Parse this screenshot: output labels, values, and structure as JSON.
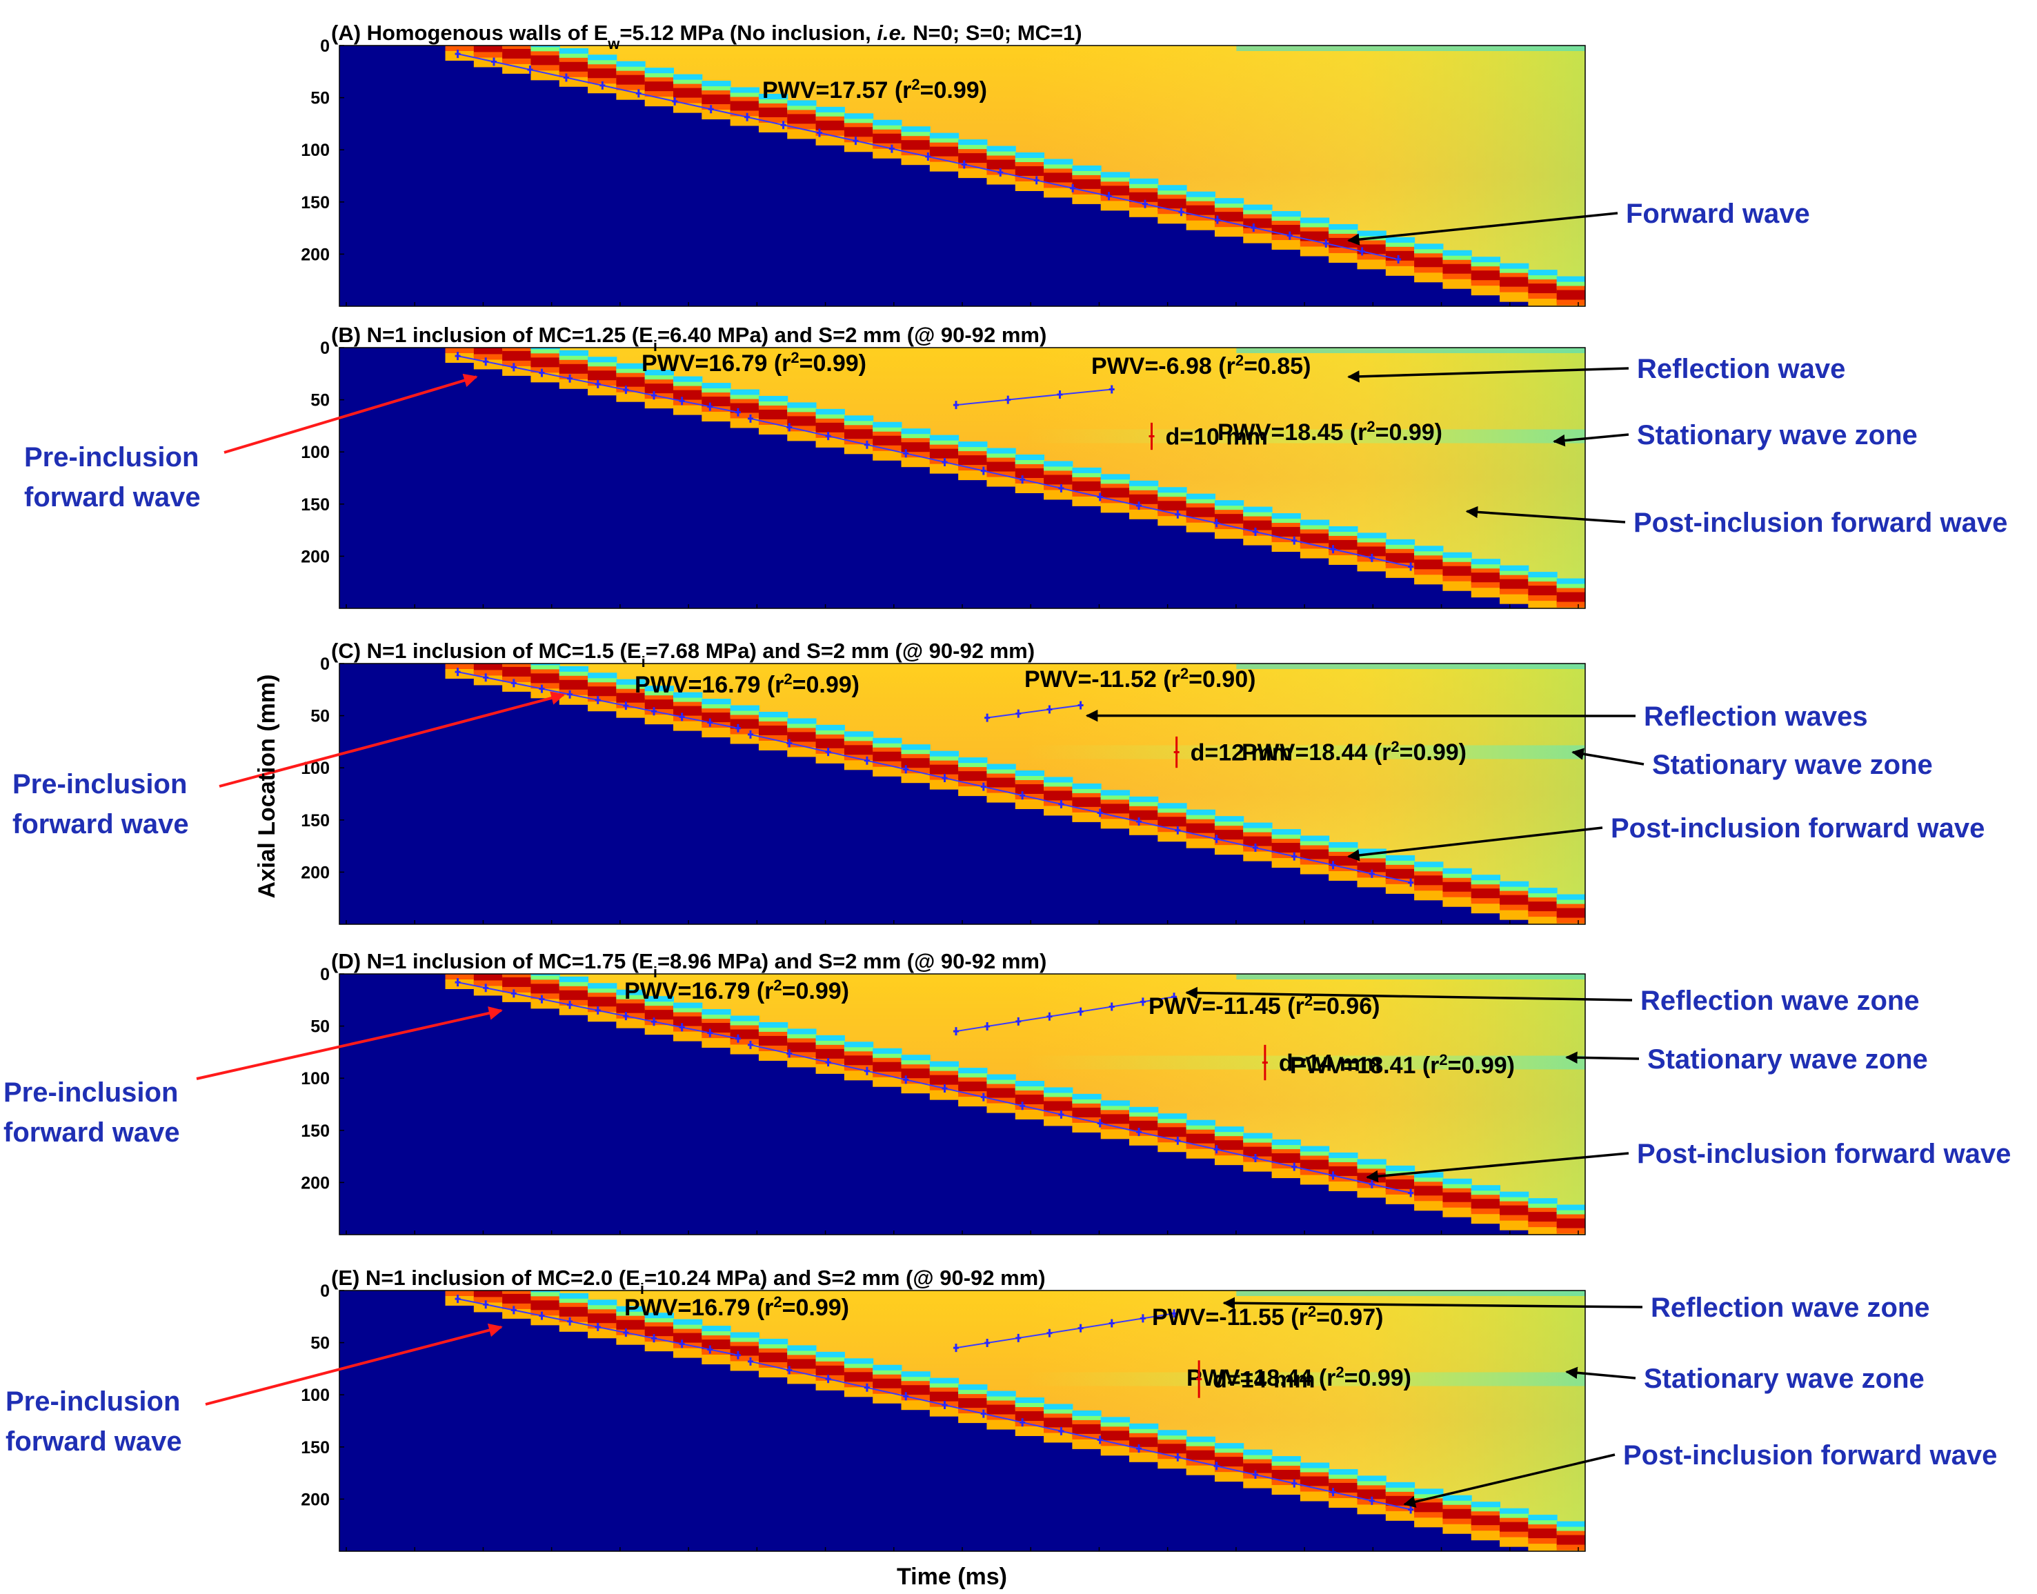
{
  "figure": {
    "ylabel": "Axial Location (mm)",
    "xlabel": "Time (ms)"
  },
  "colors": {
    "background_blue": "#00008f",
    "plateau_yellow": "#ffd21e",
    "plateau_orange": "#fcb41c",
    "wave_red": "#c00000",
    "wave_orange": "#ff5a00",
    "wave_cyan": "#1ed6ff",
    "wave_green": "#7cff79",
    "fit_line": "#3a3aff",
    "marker": "#2828ff",
    "pre_arrow": "#ff1a1a",
    "arrow_black": "#000000",
    "side_label": "#1f2fb4",
    "distance_marker": "#e00000"
  },
  "chart_data": [
    {
      "type": "heatmap",
      "panel": "A",
      "title": {
        "pre": "(A) Homogenous walls of E",
        "sub": "w",
        "post": "=5.12 MPa (No inclusion, ",
        "ital": "i.e.",
        "post2": " N=0; S=0; MC=1)"
      },
      "ylabel": "Axial Location (mm)",
      "yticks": [
        "0",
        "50",
        "100",
        "150",
        "200"
      ],
      "y_range_mm": [
        0,
        250
      ],
      "time_range": [
        0,
        1
      ],
      "wavefront": {
        "t0": 0.085,
        "t_end": 1.0,
        "y_end_mm": 250
      },
      "stationary": null,
      "reflection": null,
      "forward_fit": {
        "t_start": 0.095,
        "y_start": 8,
        "t_end": 0.85,
        "y_end": 205,
        "markers": 27,
        "pwv": "PWV=17.57",
        "r2": "0.99"
      },
      "pre_fit": null,
      "post_fit": null,
      "distance": null,
      "side_labels": [
        {
          "text": "Forward wave",
          "arrow_to": {
            "t": 0.81,
            "y": 187
          },
          "color": "black"
        }
      ]
    },
    {
      "type": "heatmap",
      "panel": "B",
      "title": {
        "pre": "(B) N=1 inclusion of MC=1.25 (E",
        "sub": "i",
        "post": "=6.40 MPa) and S=2 mm (@ 90-92 mm)",
        "ital": "",
        "post2": ""
      },
      "ylabel": "",
      "yticks": [
        "0",
        "50",
        "100",
        "150",
        "200"
      ],
      "y_range_mm": [
        0,
        250
      ],
      "time_range": [
        0,
        1
      ],
      "wavefront": {
        "t0": 0.085,
        "t_end": 1.0,
        "y_end_mm": 250
      },
      "stationary": {
        "y_mm": 85
      },
      "reflection": {
        "t_start": 0.495,
        "y_start": 55,
        "t_end": 0.62,
        "y_end": 40
      },
      "forward_fit": null,
      "pre_fit": {
        "t_start": 0.095,
        "y_start": 8,
        "t_end": 0.32,
        "y_end": 62,
        "markers": 11,
        "pwv": "PWV=16.79",
        "r2": "0.99"
      },
      "post_fit": {
        "t_start": 0.33,
        "y_start": 68,
        "t_end": 0.86,
        "y_end": 210,
        "markers": 18,
        "pwv": "PWV=18.45",
        "r2": "0.99"
      },
      "reflection_fit": {
        "markers": 4,
        "pwv": "PWV=-6.98",
        "r2": "0.85"
      },
      "distance": {
        "t": 0.652,
        "y_mm": 85,
        "half_mm": 13,
        "text": "d=10 mm"
      },
      "side_labels": [
        {
          "text": "Reflection wave",
          "arrow_to": {
            "t": 0.81,
            "y": 28
          },
          "color": "black"
        },
        {
          "text": "Stationary wave zone",
          "arrow_to": {
            "t": 0.975,
            "y": 90
          },
          "color": "black"
        },
        {
          "text": "Post-inclusion forward wave",
          "arrow_to": {
            "t": 0.905,
            "y": 157
          },
          "color": "black"
        }
      ],
      "pre_label": {
        "line1": "Pre-inclusion",
        "line2": "forward wave",
        "arrow_to": {
          "t": 0.11,
          "y": 28
        }
      }
    },
    {
      "type": "heatmap",
      "panel": "C",
      "title": {
        "pre": "(C) N=1 inclusion of MC=1.5 (E",
        "sub": "i",
        "post": "=7.68 MPa) and S=2 mm (@ 90-92 mm)",
        "ital": "",
        "post2": ""
      },
      "ylabel": "",
      "yticks": [
        "0",
        "50",
        "100",
        "150",
        "200"
      ],
      "y_range_mm": [
        0,
        250
      ],
      "time_range": [
        0,
        1
      ],
      "wavefront": {
        "t0": 0.085,
        "t_end": 1.0,
        "y_end_mm": 250
      },
      "stationary": {
        "y_mm": 85
      },
      "reflection": {
        "t_start": 0.52,
        "y_start": 52,
        "t_end": 0.595,
        "y_end": 40
      },
      "forward_fit": null,
      "pre_fit": {
        "t_start": 0.095,
        "y_start": 8,
        "t_end": 0.32,
        "y_end": 62,
        "markers": 11,
        "pwv": "PWV=16.79",
        "r2": "0.99"
      },
      "post_fit": {
        "t_start": 0.33,
        "y_start": 68,
        "t_end": 0.86,
        "y_end": 210,
        "markers": 18,
        "pwv": "PWV=18.44",
        "r2": "0.99"
      },
      "reflection_fit": {
        "markers": 4,
        "pwv": "PWV=-11.52",
        "r2": "0.90"
      },
      "distance": {
        "t": 0.672,
        "y_mm": 85,
        "half_mm": 15,
        "text": "d=12 mm"
      },
      "side_labels": [
        {
          "text": "Reflection waves",
          "arrow_to": {
            "t": 0.6,
            "y": 50
          },
          "color": "black"
        },
        {
          "text": "Stationary wave zone",
          "arrow_to": {
            "t": 0.99,
            "y": 85
          },
          "color": "black"
        },
        {
          "text": "Post-inclusion forward wave",
          "arrow_to": {
            "t": 0.81,
            "y": 185
          },
          "color": "black"
        }
      ],
      "pre_label": {
        "line1": "Pre-inclusion",
        "line2": "forward wave",
        "arrow_to": {
          "t": 0.18,
          "y": 30
        }
      }
    },
    {
      "type": "heatmap",
      "panel": "D",
      "title": {
        "pre": "(D) N=1 inclusion of MC=1.75 (E",
        "sub": "i",
        "post": "=8.96 MPa) and S=2 mm (@ 90-92 mm)",
        "ital": "",
        "post2": ""
      },
      "ylabel": "",
      "yticks": [
        "0",
        "50",
        "100",
        "150",
        "200"
      ],
      "y_range_mm": [
        0,
        250
      ],
      "time_range": [
        0,
        1
      ],
      "wavefront": {
        "t0": 0.085,
        "t_end": 1.0,
        "y_end_mm": 250
      },
      "stationary": {
        "y_mm": 85
      },
      "reflection": {
        "t_start": 0.495,
        "y_start": 55,
        "t_end": 0.67,
        "y_end": 22
      },
      "forward_fit": null,
      "pre_fit": {
        "t_start": 0.095,
        "y_start": 8,
        "t_end": 0.32,
        "y_end": 62,
        "markers": 11,
        "pwv": "PWV=16.79",
        "r2": "0.99"
      },
      "post_fit": {
        "t_start": 0.33,
        "y_start": 68,
        "t_end": 0.86,
        "y_end": 210,
        "markers": 18,
        "pwv": "PWV=18.41",
        "r2": "0.99"
      },
      "reflection_fit": {
        "markers": 8,
        "pwv": "PWV=-11.45",
        "r2": "0.96"
      },
      "distance": {
        "t": 0.743,
        "y_mm": 85,
        "half_mm": 17,
        "text": "d=14 mm"
      },
      "side_labels": [
        {
          "text": "Reflection wave zone",
          "arrow_to": {
            "t": 0.68,
            "y": 18
          },
          "color": "black"
        },
        {
          "text": "Stationary wave zone",
          "arrow_to": {
            "t": 0.985,
            "y": 80
          },
          "color": "black"
        },
        {
          "text": "Post-inclusion forward wave",
          "arrow_to": {
            "t": 0.825,
            "y": 195
          },
          "color": "black"
        }
      ],
      "pre_label": {
        "line1": "Pre-inclusion",
        "line2": "forward wave",
        "arrow_to": {
          "t": 0.13,
          "y": 35
        }
      }
    },
    {
      "type": "heatmap",
      "panel": "E",
      "title": {
        "pre": "(E) N=1 inclusion of MC=2.0 (E",
        "sub": "i",
        "post": "=10.24 MPa) and S=2 mm (@ 90-92 mm)",
        "ital": "",
        "post2": ""
      },
      "ylabel": "",
      "yticks": [
        "0",
        "50",
        "100",
        "150",
        "200"
      ],
      "y_range_mm": [
        0,
        250
      ],
      "time_range": [
        0,
        1
      ],
      "wavefront": {
        "t0": 0.085,
        "t_end": 1.0,
        "y_end_mm": 250
      },
      "stationary": {
        "y_mm": 85
      },
      "reflection": {
        "t_start": 0.495,
        "y_start": 55,
        "t_end": 0.67,
        "y_end": 22
      },
      "forward_fit": null,
      "pre_fit": {
        "t_start": 0.095,
        "y_start": 8,
        "t_end": 0.32,
        "y_end": 62,
        "markers": 11,
        "pwv": "PWV=16.79",
        "r2": "0.99"
      },
      "post_fit": {
        "t_start": 0.33,
        "y_start": 68,
        "t_end": 0.86,
        "y_end": 210,
        "markers": 18,
        "pwv": "PWV=18.44",
        "r2": "0.99"
      },
      "reflection_fit": {
        "markers": 8,
        "pwv": "PWV=-11.55",
        "r2": "0.97"
      },
      "distance": {
        "t": 0.69,
        "y_mm": 85,
        "half_mm": 18,
        "text": "d=14 mm"
      },
      "side_labels": [
        {
          "text": "Reflection wave zone",
          "arrow_to": {
            "t": 0.71,
            "y": 12
          },
          "color": "black"
        },
        {
          "text": "Stationary wave zone",
          "arrow_to": {
            "t": 0.985,
            "y": 78
          },
          "color": "black"
        },
        {
          "text": "Post-inclusion forward wave",
          "arrow_to": {
            "t": 0.855,
            "y": 205
          },
          "color": "black"
        }
      ],
      "pre_label": {
        "line1": "Pre-inclusion",
        "line2": "forward wave",
        "arrow_to": {
          "t": 0.13,
          "y": 35
        }
      }
    }
  ]
}
